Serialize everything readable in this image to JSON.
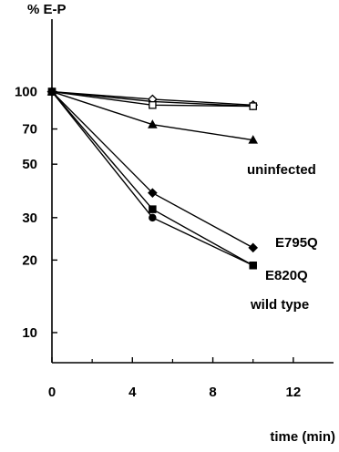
{
  "chart_data": {
    "type": "line",
    "title": "",
    "ylabel": "% E-P",
    "xlabel": "time (min)",
    "y_scale": "log",
    "xlim": [
      0,
      14
    ],
    "ylim": [
      7.5,
      200
    ],
    "grid": false,
    "x_ticks": [
      0,
      4,
      8,
      12
    ],
    "x_minor_ticks": [
      2,
      6,
      10
    ],
    "y_ticks": [
      10,
      20,
      30,
      50,
      70,
      100
    ],
    "annotations": [
      "uninfected",
      "E795Q",
      "E820Q",
      "wild type"
    ],
    "series": [
      {
        "marker": "circle-open",
        "x": [
          0,
          5,
          10
        ],
        "y": [
          100,
          91,
          87
        ]
      },
      {
        "marker": "diamond-open",
        "x": [
          0,
          5,
          10
        ],
        "y": [
          100,
          93,
          88
        ]
      },
      {
        "marker": "square-open",
        "x": [
          0,
          5,
          10
        ],
        "y": [
          100,
          88,
          87
        ]
      },
      {
        "marker": "triangle-filled",
        "x": [
          0,
          5,
          10
        ],
        "y": [
          100,
          73,
          63
        ]
      },
      {
        "marker": "diamond-filled",
        "x": [
          0,
          5,
          10
        ],
        "y": [
          100,
          38,
          22.5
        ]
      },
      {
        "marker": "square-filled",
        "x": [
          0,
          5,
          10
        ],
        "y": [
          100,
          32.5,
          19
        ]
      },
      {
        "marker": "circle-filled",
        "x": [
          0,
          5,
          10
        ],
        "y": [
          100,
          30,
          19
        ]
      }
    ]
  }
}
